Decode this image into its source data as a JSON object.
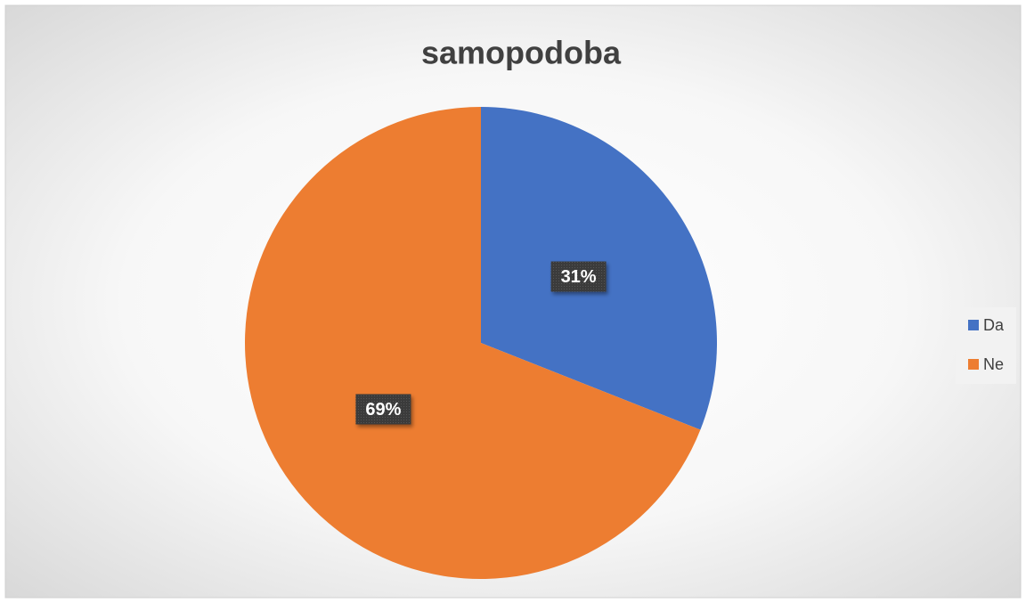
{
  "chart_data": {
    "type": "pie",
    "title": "samopodoba",
    "categories": [
      "Da",
      "Ne"
    ],
    "values": [
      31,
      69
    ],
    "value_labels": [
      "31%",
      "69%"
    ],
    "colors": [
      "#4472c4",
      "#ed7d31"
    ],
    "legend": "right"
  }
}
